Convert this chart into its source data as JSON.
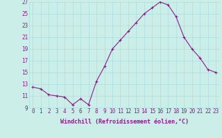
{
  "x": [
    0,
    1,
    2,
    3,
    4,
    5,
    6,
    7,
    8,
    9,
    10,
    11,
    12,
    13,
    14,
    15,
    16,
    17,
    18,
    19,
    20,
    21,
    22,
    23
  ],
  "y": [
    12.5,
    12.2,
    11.2,
    11.0,
    10.8,
    9.5,
    10.5,
    9.5,
    13.5,
    16.0,
    19.0,
    20.5,
    22.0,
    23.5,
    25.0,
    26.0,
    27.0,
    26.5,
    24.5,
    21.0,
    19.0,
    17.5,
    15.5,
    15.0
  ],
  "line_color": "#8b1a8b",
  "marker": "+",
  "markersize": 3,
  "linewidth": 0.8,
  "bg_color": "#cceee8",
  "grid_color": "#aadddd",
  "xlabel": "Windchill (Refroidissement éolien,°C)",
  "xlabel_fontsize": 6,
  "tick_fontsize": 5.5,
  "ylim": [
    9,
    27
  ],
  "yticks": [
    9,
    11,
    13,
    15,
    17,
    19,
    21,
    23,
    25,
    27
  ],
  "xticks": [
    0,
    1,
    2,
    3,
    4,
    5,
    6,
    7,
    8,
    9,
    10,
    11,
    12,
    13,
    14,
    15,
    16,
    17,
    18,
    19,
    20,
    21,
    22,
    23
  ]
}
